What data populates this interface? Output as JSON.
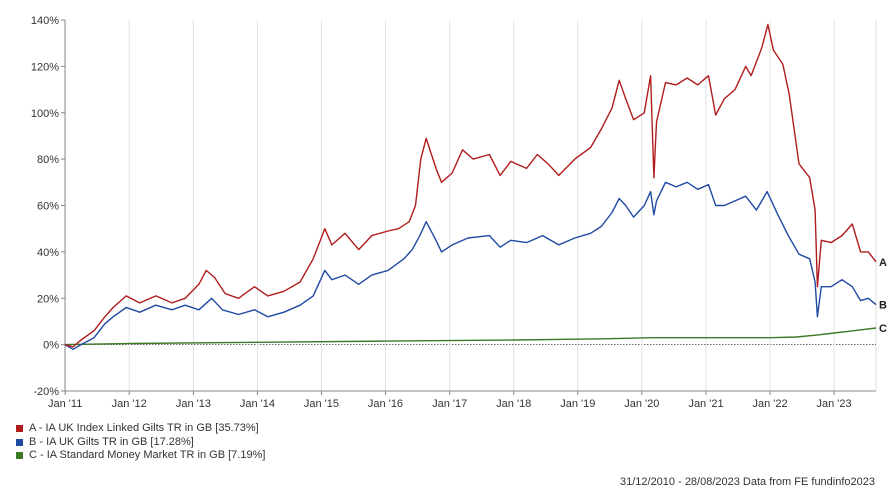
{
  "chart_data": {
    "type": "line",
    "title": "",
    "xlabel": "",
    "ylabel": "",
    "x_range": [
      "2010-12-31",
      "2023-08-28"
    ],
    "ylim": [
      -20,
      140
    ],
    "y_ticks": [
      -20,
      0,
      20,
      40,
      60,
      80,
      100,
      120,
      140
    ],
    "y_tick_labels": [
      "-20%",
      "0%",
      "20%",
      "40%",
      "60%",
      "80%",
      "100%",
      "120%",
      "140%"
    ],
    "x_ticks": [
      "2011-01-01",
      "2012-01-01",
      "2013-01-01",
      "2014-01-01",
      "2015-01-01",
      "2016-01-01",
      "2017-01-01",
      "2018-01-01",
      "2019-01-01",
      "2020-01-01",
      "2021-01-01",
      "2022-01-01",
      "2023-01-01"
    ],
    "x_tick_labels": [
      "Jan '11",
      "Jan '12",
      "Jan '13",
      "Jan '14",
      "Jan '15",
      "Jan '16",
      "Jan '17",
      "Jan '18",
      "Jan '19",
      "Jan '20",
      "Jan '21",
      "Jan '22",
      "Jan '23"
    ],
    "grid": "vertical",
    "legend_position": "bottom-left",
    "series": [
      {
        "name": "A - IA UK Index Linked Gilts TR in GB [35.73%]",
        "end_label": "A",
        "color": "#b01c1c",
        "points": [
          [
            "2010-12-31",
            0
          ],
          [
            "2011-02-15",
            -1
          ],
          [
            "2011-04-01",
            2
          ],
          [
            "2011-06-15",
            6
          ],
          [
            "2011-08-15",
            12
          ],
          [
            "2011-10-01",
            16
          ],
          [
            "2011-12-15",
            21
          ],
          [
            "2012-03-01",
            18
          ],
          [
            "2012-06-01",
            21
          ],
          [
            "2012-09-01",
            18
          ],
          [
            "2012-11-15",
            20
          ],
          [
            "2013-02-01",
            26
          ],
          [
            "2013-03-15",
            32
          ],
          [
            "2013-05-01",
            29
          ],
          [
            "2013-07-01",
            22
          ],
          [
            "2013-09-15",
            20
          ],
          [
            "2013-12-15",
            25
          ],
          [
            "2014-03-01",
            21
          ],
          [
            "2014-06-01",
            23
          ],
          [
            "2014-09-01",
            27
          ],
          [
            "2014-11-15",
            37
          ],
          [
            "2015-01-20",
            50
          ],
          [
            "2015-03-01",
            43
          ],
          [
            "2015-05-15",
            48
          ],
          [
            "2015-08-01",
            41
          ],
          [
            "2015-10-15",
            47
          ],
          [
            "2016-01-15",
            49
          ],
          [
            "2016-03-15",
            50
          ],
          [
            "2016-05-15",
            53
          ],
          [
            "2016-06-20",
            60
          ],
          [
            "2016-07-20",
            80
          ],
          [
            "2016-08-20",
            89
          ],
          [
            "2016-10-15",
            76
          ],
          [
            "2016-11-15",
            70
          ],
          [
            "2017-01-15",
            74
          ],
          [
            "2017-03-15",
            84
          ],
          [
            "2017-05-15",
            80
          ],
          [
            "2017-08-15",
            82
          ],
          [
            "2017-10-15",
            73
          ],
          [
            "2017-12-15",
            79
          ],
          [
            "2018-03-15",
            76
          ],
          [
            "2018-05-15",
            82
          ],
          [
            "2018-07-15",
            78
          ],
          [
            "2018-09-15",
            73
          ],
          [
            "2018-12-15",
            80
          ],
          [
            "2019-03-15",
            85
          ],
          [
            "2019-05-15",
            93
          ],
          [
            "2019-07-15",
            102
          ],
          [
            "2019-08-25",
            114
          ],
          [
            "2019-10-01",
            106
          ],
          [
            "2019-11-15",
            97
          ],
          [
            "2020-01-15",
            100
          ],
          [
            "2020-02-20",
            116
          ],
          [
            "2020-03-10",
            72
          ],
          [
            "2020-03-25",
            96
          ],
          [
            "2020-05-15",
            113
          ],
          [
            "2020-07-15",
            112
          ],
          [
            "2020-09-15",
            115
          ],
          [
            "2020-11-15",
            112
          ],
          [
            "2021-01-15",
            116
          ],
          [
            "2021-02-25",
            99
          ],
          [
            "2021-04-15",
            106
          ],
          [
            "2021-06-15",
            110
          ],
          [
            "2021-08-15",
            120
          ],
          [
            "2021-09-15",
            116
          ],
          [
            "2021-11-15",
            128
          ],
          [
            "2021-12-20",
            138
          ],
          [
            "2022-01-20",
            127
          ],
          [
            "2022-03-15",
            121
          ],
          [
            "2022-04-20",
            108
          ],
          [
            "2022-06-15",
            78
          ],
          [
            "2022-08-15",
            72
          ],
          [
            "2022-09-15",
            58
          ],
          [
            "2022-09-28",
            25
          ],
          [
            "2022-10-20",
            45
          ],
          [
            "2022-12-15",
            44
          ],
          [
            "2023-02-15",
            47
          ],
          [
            "2023-04-15",
            52
          ],
          [
            "2023-06-01",
            40
          ],
          [
            "2023-07-15",
            40
          ],
          [
            "2023-08-28",
            35.73
          ]
        ]
      },
      {
        "name": "B - IA UK Gilts TR in GB [17.28%]",
        "end_label": "B",
        "color": "#1f4aa3",
        "points": [
          [
            "2010-12-31",
            0
          ],
          [
            "2011-02-15",
            -2
          ],
          [
            "2011-04-01",
            0
          ],
          [
            "2011-06-15",
            3
          ],
          [
            "2011-08-15",
            9
          ],
          [
            "2011-10-01",
            12
          ],
          [
            "2011-12-15",
            16
          ],
          [
            "2012-03-01",
            14
          ],
          [
            "2012-06-01",
            17
          ],
          [
            "2012-09-01",
            15
          ],
          [
            "2012-11-15",
            17
          ],
          [
            "2013-02-01",
            15
          ],
          [
            "2013-04-15",
            20
          ],
          [
            "2013-06-15",
            15
          ],
          [
            "2013-09-15",
            13
          ],
          [
            "2013-12-15",
            15
          ],
          [
            "2014-03-01",
            12
          ],
          [
            "2014-06-01",
            14
          ],
          [
            "2014-09-01",
            17
          ],
          [
            "2014-11-15",
            21
          ],
          [
            "2015-01-20",
            32
          ],
          [
            "2015-03-01",
            28
          ],
          [
            "2015-05-15",
            30
          ],
          [
            "2015-08-01",
            26
          ],
          [
            "2015-10-15",
            30
          ],
          [
            "2016-01-15",
            32
          ],
          [
            "2016-04-15",
            37
          ],
          [
            "2016-06-01",
            41
          ],
          [
            "2016-07-15",
            47
          ],
          [
            "2016-08-20",
            53
          ],
          [
            "2016-10-15",
            45
          ],
          [
            "2016-11-15",
            40
          ],
          [
            "2017-01-15",
            43
          ],
          [
            "2017-04-15",
            46
          ],
          [
            "2017-08-15",
            47
          ],
          [
            "2017-10-15",
            42
          ],
          [
            "2017-12-15",
            45
          ],
          [
            "2018-03-15",
            44
          ],
          [
            "2018-06-15",
            47
          ],
          [
            "2018-09-15",
            43
          ],
          [
            "2018-12-15",
            46
          ],
          [
            "2019-03-15",
            48
          ],
          [
            "2019-05-15",
            51
          ],
          [
            "2019-07-15",
            57
          ],
          [
            "2019-08-25",
            63
          ],
          [
            "2019-10-01",
            60
          ],
          [
            "2019-11-15",
            55
          ],
          [
            "2020-01-15",
            60
          ],
          [
            "2020-02-20",
            66
          ],
          [
            "2020-03-10",
            56
          ],
          [
            "2020-03-25",
            62
          ],
          [
            "2020-05-15",
            70
          ],
          [
            "2020-07-15",
            68
          ],
          [
            "2020-09-15",
            70
          ],
          [
            "2020-11-15",
            67
          ],
          [
            "2021-01-15",
            69
          ],
          [
            "2021-02-25",
            60
          ],
          [
            "2021-04-15",
            60
          ],
          [
            "2021-06-15",
            62
          ],
          [
            "2021-08-15",
            64
          ],
          [
            "2021-10-15",
            58
          ],
          [
            "2021-12-15",
            66
          ],
          [
            "2022-02-15",
            56
          ],
          [
            "2022-04-15",
            47
          ],
          [
            "2022-06-15",
            39
          ],
          [
            "2022-08-15",
            37
          ],
          [
            "2022-09-15",
            27
          ],
          [
            "2022-09-28",
            12
          ],
          [
            "2022-10-20",
            25
          ],
          [
            "2022-12-15",
            25
          ],
          [
            "2023-02-15",
            28
          ],
          [
            "2023-04-15",
            25
          ],
          [
            "2023-06-01",
            19
          ],
          [
            "2023-07-15",
            20
          ],
          [
            "2023-08-28",
            17.28
          ]
        ]
      },
      {
        "name": "C - IA Standard Money Market TR in GB [7.19%]",
        "end_label": "C",
        "color": "#3d7a26",
        "points": [
          [
            "2010-12-31",
            0
          ],
          [
            "2012-01-01",
            0.5
          ],
          [
            "2014-01-01",
            1
          ],
          [
            "2016-01-01",
            1.5
          ],
          [
            "2018-01-01",
            2
          ],
          [
            "2019-06-01",
            2.5
          ],
          [
            "2020-03-01",
            3
          ],
          [
            "2021-06-01",
            3
          ],
          [
            "2022-01-01",
            3
          ],
          [
            "2022-06-01",
            3.3
          ],
          [
            "2022-10-01",
            4.2
          ],
          [
            "2023-01-01",
            5
          ],
          [
            "2023-04-01",
            5.8
          ],
          [
            "2023-08-28",
            7.19
          ]
        ]
      }
    ]
  },
  "footer": {
    "text": "31/12/2010 - 28/08/2023 Data from FE fundinfo2023"
  }
}
